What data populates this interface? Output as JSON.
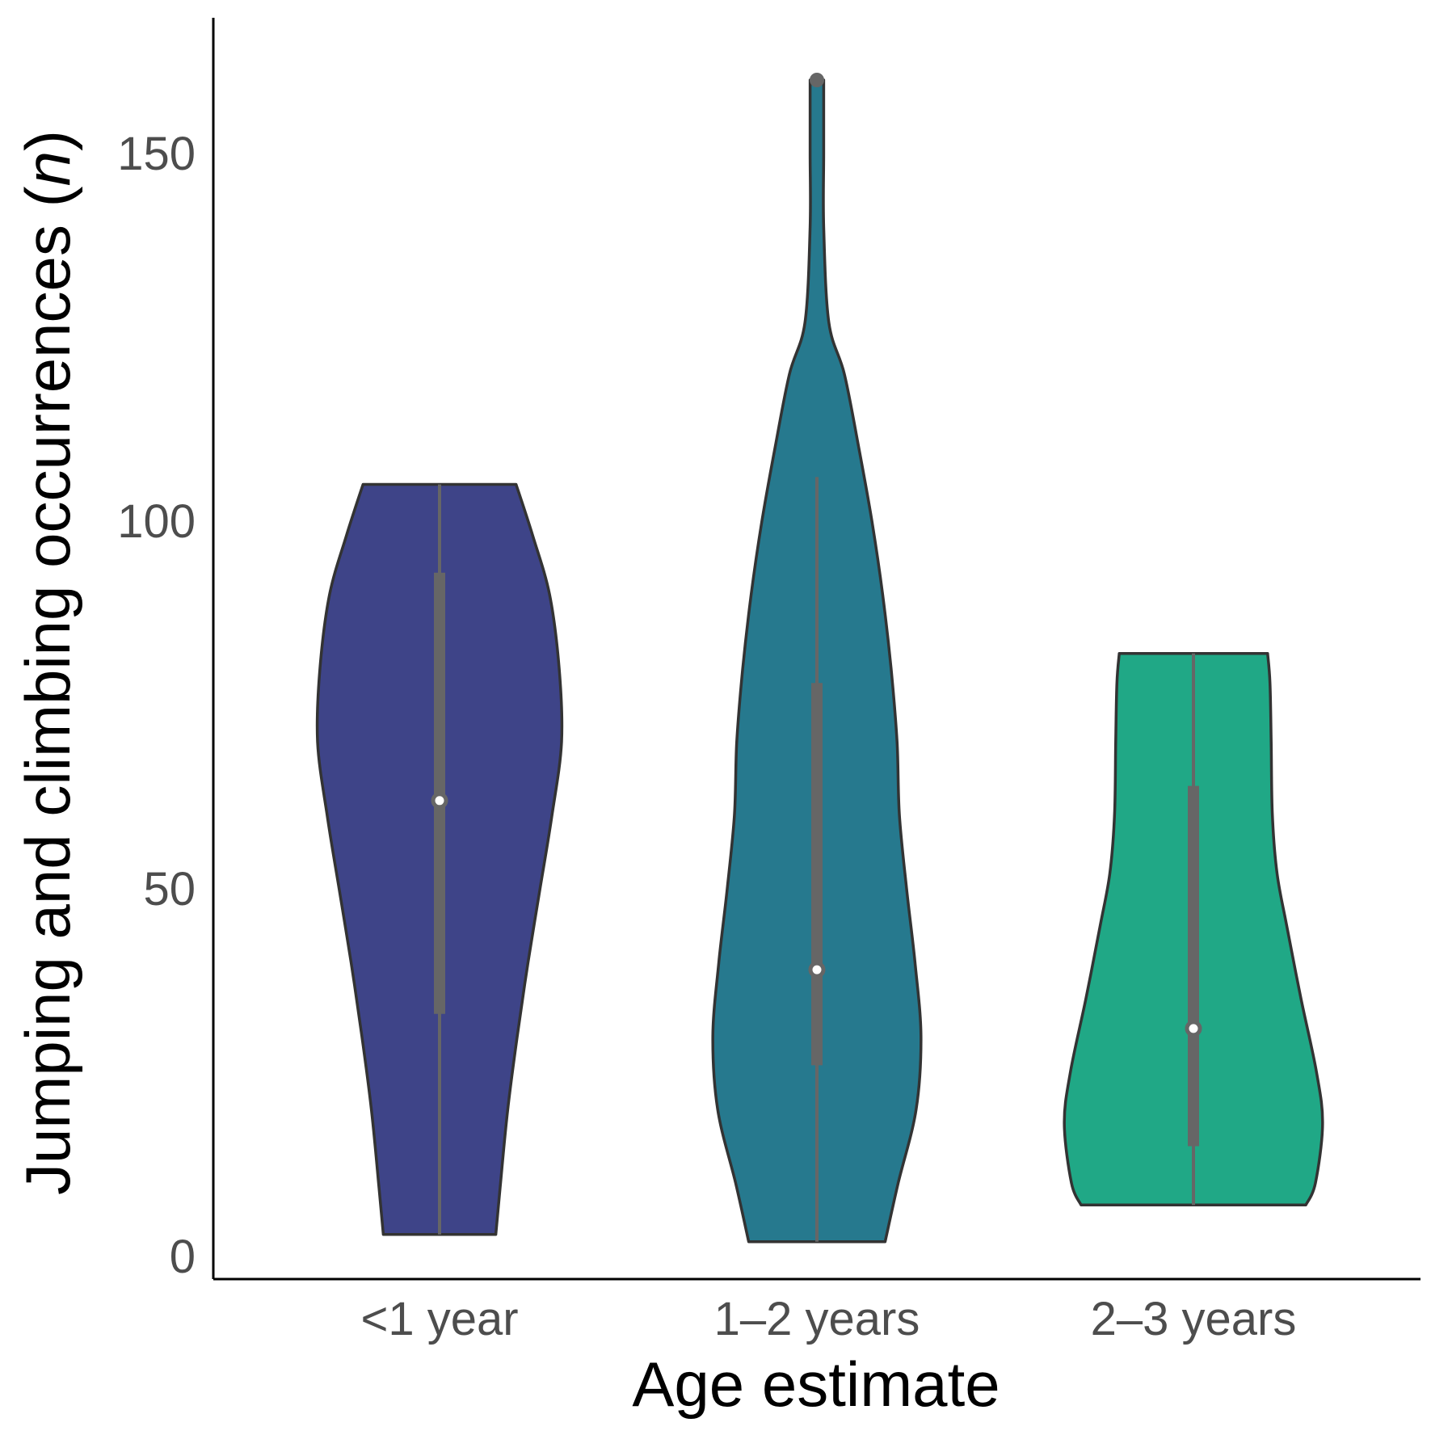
{
  "chart_data": {
    "type": "violin",
    "title": "",
    "xlabel": "Age estimate",
    "ylabel_main": "Jumping and climbing occurrences",
    "ylabel_symbol": "n",
    "categories": [
      "<1 year",
      "1–2 years",
      "2–3 years"
    ],
    "colors": [
      "#3e4488",
      "#26798e",
      "#20a886"
    ],
    "ylim": [
      -7,
      168
    ],
    "yticks": [
      0,
      50,
      100,
      150
    ],
    "grid": false,
    "legend": "none",
    "series": [
      {
        "category": "<1 year",
        "min": 3,
        "max": 105,
        "q1": 33,
        "median": 62,
        "q3": 93,
        "whisker_low": 3,
        "whisker_high": 105,
        "outliers": [],
        "density": [
          [
            3,
            0.47
          ],
          [
            10,
            0.51
          ],
          [
            20,
            0.57
          ],
          [
            30,
            0.65
          ],
          [
            40,
            0.74
          ],
          [
            50,
            0.84
          ],
          [
            60,
            0.94
          ],
          [
            70,
            1.02
          ],
          [
            80,
            1.0
          ],
          [
            90,
            0.92
          ],
          [
            98,
            0.78
          ],
          [
            105,
            0.64
          ]
        ]
      },
      {
        "category": "1–2 years",
        "min": 2,
        "max": 160,
        "q1": 26,
        "median": 39,
        "q3": 78,
        "whisker_low": 2,
        "whisker_high": 106,
        "outliers": [
          160
        ],
        "density": [
          [
            2,
            0.57
          ],
          [
            10,
            0.68
          ],
          [
            20,
            0.83
          ],
          [
            30,
            0.87
          ],
          [
            40,
            0.82
          ],
          [
            50,
            0.75
          ],
          [
            60,
            0.69
          ],
          [
            70,
            0.67
          ],
          [
            80,
            0.62
          ],
          [
            90,
            0.55
          ],
          [
            100,
            0.46
          ],
          [
            110,
            0.35
          ],
          [
            120,
            0.23
          ],
          [
            127,
            0.1
          ],
          [
            140,
            0.057
          ],
          [
            150,
            0.057
          ],
          [
            160,
            0.057
          ]
        ]
      },
      {
        "category": "2–3 years",
        "min": 7,
        "max": 82,
        "q1": 15,
        "median": 31,
        "q3": 64,
        "whisker_low": 7,
        "whisker_high": 82,
        "outliers": [],
        "density": [
          [
            7,
            0.94
          ],
          [
            10,
            1.02
          ],
          [
            18,
            1.08
          ],
          [
            25,
            1.03
          ],
          [
            35,
            0.9
          ],
          [
            45,
            0.78
          ],
          [
            52,
            0.7
          ],
          [
            60,
            0.66
          ],
          [
            70,
            0.65
          ],
          [
            78,
            0.64
          ],
          [
            82,
            0.62
          ]
        ]
      }
    ]
  }
}
